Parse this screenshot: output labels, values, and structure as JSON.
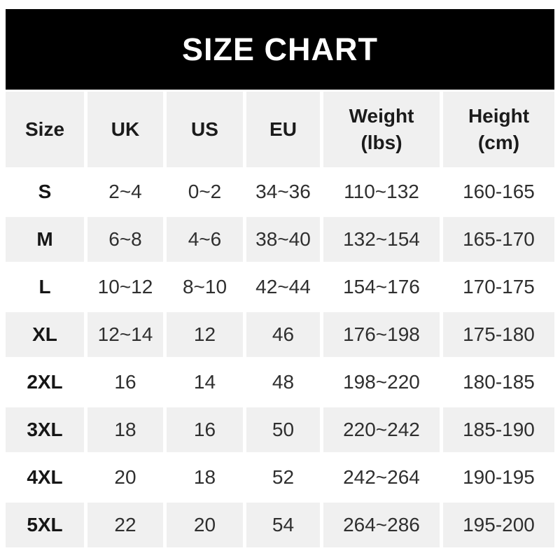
{
  "banner": {
    "title": "SIZE CHART"
  },
  "colors": {
    "banner_bg": "#000000",
    "banner_text": "#ffffff",
    "cell_stripe_bg": "#f0f0f0",
    "cell_white_bg": "#ffffff",
    "header_text": "#1b1b1b",
    "data_text": "#2f2f2f"
  },
  "chart_data": {
    "type": "table",
    "title": "SIZE CHART",
    "columns": [
      "Size",
      "UK",
      "US",
      "EU",
      "Weight\n(lbs)",
      "Height\n(cm)"
    ],
    "rows": [
      [
        "S",
        "2~4",
        "0~2",
        "34~36",
        "110~132",
        "160-165"
      ],
      [
        "M",
        "6~8",
        "4~6",
        "38~40",
        "132~154",
        "165-170"
      ],
      [
        "L",
        "10~12",
        "8~10",
        "42~44",
        "154~176",
        "170-175"
      ],
      [
        "XL",
        "12~14",
        "12",
        "46",
        "176~198",
        "175-180"
      ],
      [
        "2XL",
        "16",
        "14",
        "48",
        "198~220",
        "180-185"
      ],
      [
        "3XL",
        "18",
        "16",
        "50",
        "220~242",
        "185-190"
      ],
      [
        "4XL",
        "20",
        "18",
        "52",
        "242~264",
        "190-195"
      ],
      [
        "5XL",
        "22",
        "20",
        "54",
        "264~286",
        "195-200"
      ]
    ],
    "layout_hints": {
      "striped_rows": "header and even data rows (M, XL, 3XL, 5XL) are gray",
      "grid": "white gaps act as gridlines",
      "alignment": "all cells centered"
    }
  }
}
